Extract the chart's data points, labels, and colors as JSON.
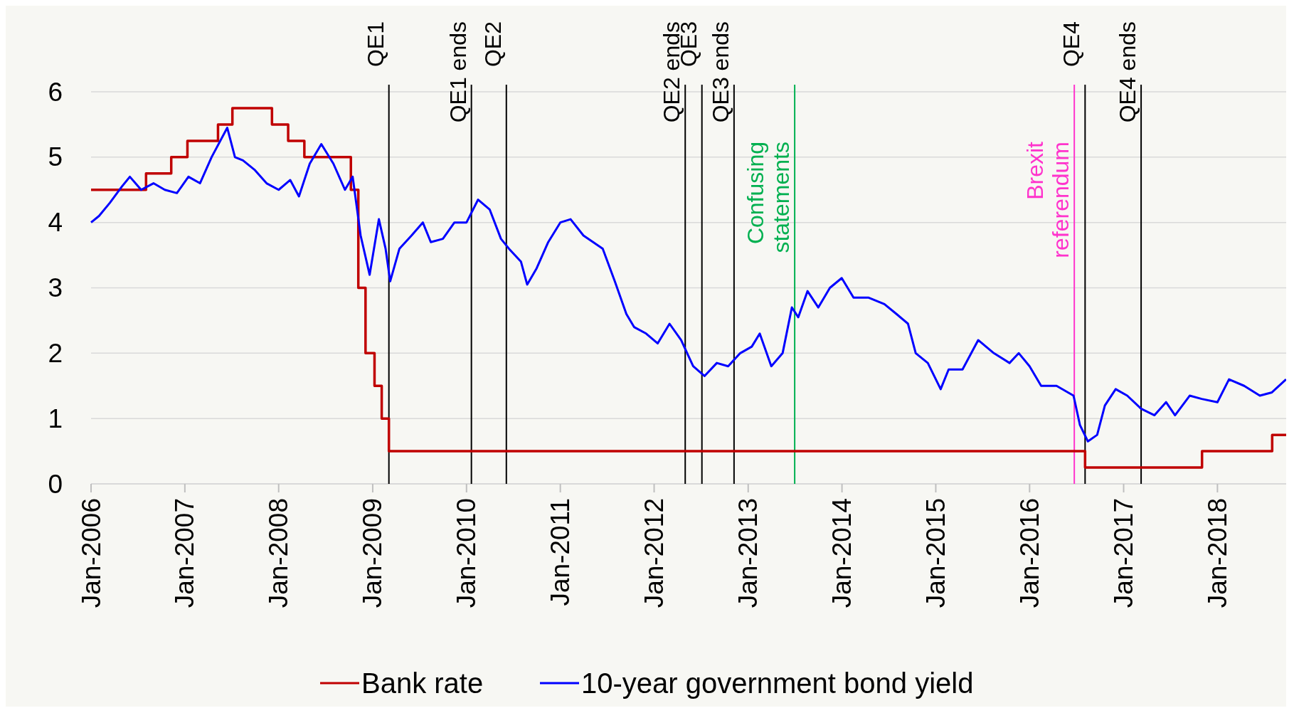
{
  "chart_data": {
    "type": "line",
    "xlim": [
      "2006-01-01",
      "2018-10-01"
    ],
    "ylim": [
      0,
      6
    ],
    "yticks": [
      0,
      1,
      2,
      3,
      4,
      5,
      6
    ],
    "xticks": [
      {
        "value": "2006-01-01",
        "label": "Jan-2006"
      },
      {
        "value": "2007-01-01",
        "label": "Jan-2007"
      },
      {
        "value": "2008-01-01",
        "label": "Jan-2008"
      },
      {
        "value": "2009-01-01",
        "label": "Jan-2009"
      },
      {
        "value": "2010-01-01",
        "label": "Jan-2010"
      },
      {
        "value": "2011-01-01",
        "label": "Jan-2011"
      },
      {
        "value": "2012-01-01",
        "label": "Jan-2012"
      },
      {
        "value": "2013-01-01",
        "label": "Jan-2013"
      },
      {
        "value": "2014-01-01",
        "label": "Jan-2014"
      },
      {
        "value": "2015-01-01",
        "label": "Jan-2015"
      },
      {
        "value": "2016-01-01",
        "label": "Jan-2016"
      },
      {
        "value": "2017-01-01",
        "label": "Jan-2017"
      },
      {
        "value": "2018-01-01",
        "label": "Jan-2018"
      }
    ],
    "grid": "y",
    "legend": "bottom",
    "series": [
      {
        "name": "Bank rate",
        "type": "step",
        "color": "#c00000",
        "x": [
          "2006-01-01",
          "2006-08-03",
          "2006-11-09",
          "2007-01-11",
          "2007-05-10",
          "2007-07-05",
          "2007-12-06",
          "2008-02-07",
          "2008-04-10",
          "2008-10-08",
          "2008-11-06",
          "2008-12-04",
          "2009-01-08",
          "2009-02-05",
          "2009-03-05",
          "2016-08-04",
          "2017-11-02",
          "2018-08-02",
          "2018-10-01"
        ],
        "values": [
          4.5,
          4.75,
          5.0,
          5.25,
          5.5,
          5.75,
          5.5,
          5.25,
          5.0,
          4.5,
          3.0,
          2.0,
          1.5,
          1.0,
          0.5,
          0.25,
          0.5,
          0.75,
          0.75
        ]
      },
      {
        "name": "10-year government bond yield",
        "color": "#0000ff",
        "x": [
          "2006-01-01",
          "2006-02-01",
          "2006-03-15",
          "2006-05-01",
          "2006-06-01",
          "2006-07-15",
          "2006-09-01",
          "2006-10-15",
          "2006-12-01",
          "2007-01-15",
          "2007-03-01",
          "2007-04-15",
          "2007-06-15",
          "2007-07-15",
          "2007-08-15",
          "2007-10-01",
          "2007-11-15",
          "2008-01-01",
          "2008-02-15",
          "2008-03-20",
          "2008-05-01",
          "2008-06-15",
          "2008-08-01",
          "2008-09-15",
          "2008-10-15",
          "2008-11-15",
          "2008-12-20",
          "2009-01-25",
          "2009-02-20",
          "2009-03-10",
          "2009-04-15",
          "2009-06-01",
          "2009-07-15",
          "2009-08-15",
          "2009-10-01",
          "2009-11-15",
          "2010-01-01",
          "2010-02-15",
          "2010-04-01",
          "2010-05-15",
          "2010-06-15",
          "2010-08-01",
          "2010-08-25",
          "2010-10-01",
          "2010-11-15",
          "2011-01-01",
          "2011-02-10",
          "2011-04-01",
          "2011-06-15",
          "2011-08-01",
          "2011-09-15",
          "2011-10-15",
          "2011-12-01",
          "2012-01-15",
          "2012-03-01",
          "2012-04-15",
          "2012-06-01",
          "2012-07-15",
          "2012-09-01",
          "2012-10-15",
          "2012-12-01",
          "2013-01-15",
          "2013-02-15",
          "2013-04-01",
          "2013-05-15",
          "2013-06-20",
          "2013-07-15",
          "2013-08-20",
          "2013-10-01",
          "2013-11-15",
          "2013-12-31",
          "2014-02-15",
          "2014-04-15",
          "2014-06-15",
          "2014-08-01",
          "2014-09-15",
          "2014-10-15",
          "2014-12-01",
          "2015-01-20",
          "2015-02-20",
          "2015-04-15",
          "2015-06-15",
          "2015-08-15",
          "2015-10-15",
          "2015-11-20",
          "2016-01-01",
          "2016-02-15",
          "2016-04-15",
          "2016-06-20",
          "2016-07-15",
          "2016-08-15",
          "2016-09-20",
          "2016-10-20",
          "2016-12-01",
          "2017-01-15",
          "2017-03-10",
          "2017-05-01",
          "2017-06-15",
          "2017-07-20",
          "2017-09-15",
          "2017-11-01",
          "2018-01-01",
          "2018-02-15",
          "2018-04-15",
          "2018-06-15",
          "2018-08-01",
          "2018-09-25"
        ],
        "values": [
          4.0,
          4.1,
          4.3,
          4.55,
          4.7,
          4.5,
          4.6,
          4.5,
          4.45,
          4.7,
          4.6,
          5.0,
          5.45,
          5.0,
          4.95,
          4.8,
          4.6,
          4.5,
          4.65,
          4.4,
          4.9,
          5.2,
          4.9,
          4.5,
          4.7,
          3.8,
          3.2,
          4.05,
          3.6,
          3.1,
          3.6,
          3.8,
          4.0,
          3.7,
          3.75,
          4.0,
          4.0,
          4.35,
          4.2,
          3.75,
          3.6,
          3.4,
          3.05,
          3.3,
          3.7,
          4.0,
          4.05,
          3.8,
          3.6,
          3.1,
          2.6,
          2.4,
          2.3,
          2.15,
          2.45,
          2.2,
          1.8,
          1.65,
          1.85,
          1.8,
          2.0,
          2.1,
          2.3,
          1.8,
          2.0,
          2.7,
          2.55,
          2.95,
          2.7,
          3.0,
          3.15,
          2.85,
          2.85,
          2.75,
          2.6,
          2.45,
          2.0,
          1.85,
          1.45,
          1.75,
          1.75,
          2.2,
          2.0,
          1.85,
          2.0,
          1.8,
          1.5,
          1.5,
          1.35,
          0.9,
          0.65,
          0.75,
          1.2,
          1.45,
          1.35,
          1.15,
          1.05,
          1.25,
          1.05,
          1.35,
          1.3,
          1.25,
          1.6,
          1.5,
          1.35,
          1.4,
          1.6
        ]
      }
    ],
    "ref_lines": [
      {
        "axis": "x",
        "value": "2009-03-05",
        "label": "QE1",
        "color": "#000000"
      },
      {
        "axis": "x",
        "value": "2010-01-20",
        "label": "QE1 ends",
        "color": "#000000"
      },
      {
        "axis": "x",
        "value": "2010-06-05",
        "label": "QE2",
        "color": "#000000"
      },
      {
        "axis": "x",
        "value": "2012-05-01",
        "label": "QE2 ends",
        "color": "#000000"
      },
      {
        "axis": "x",
        "value": "2012-07-05",
        "label": "QE3",
        "color": "#000000"
      },
      {
        "axis": "x",
        "value": "2012-11-07",
        "label": "QE3 ends",
        "color": "#000000"
      },
      {
        "axis": "x",
        "value": "2013-07-01",
        "label": "Confusing\nstatements",
        "color": "#00b050"
      },
      {
        "axis": "x",
        "value": "2016-06-23",
        "label": "Brexit\nreferendum",
        "color": "#ff33cc"
      },
      {
        "axis": "x",
        "value": "2016-08-04",
        "label": "QE4",
        "color": "#000000"
      },
      {
        "axis": "x",
        "value": "2017-03-10",
        "label": "QE4 ends",
        "color": "#000000"
      }
    ]
  }
}
